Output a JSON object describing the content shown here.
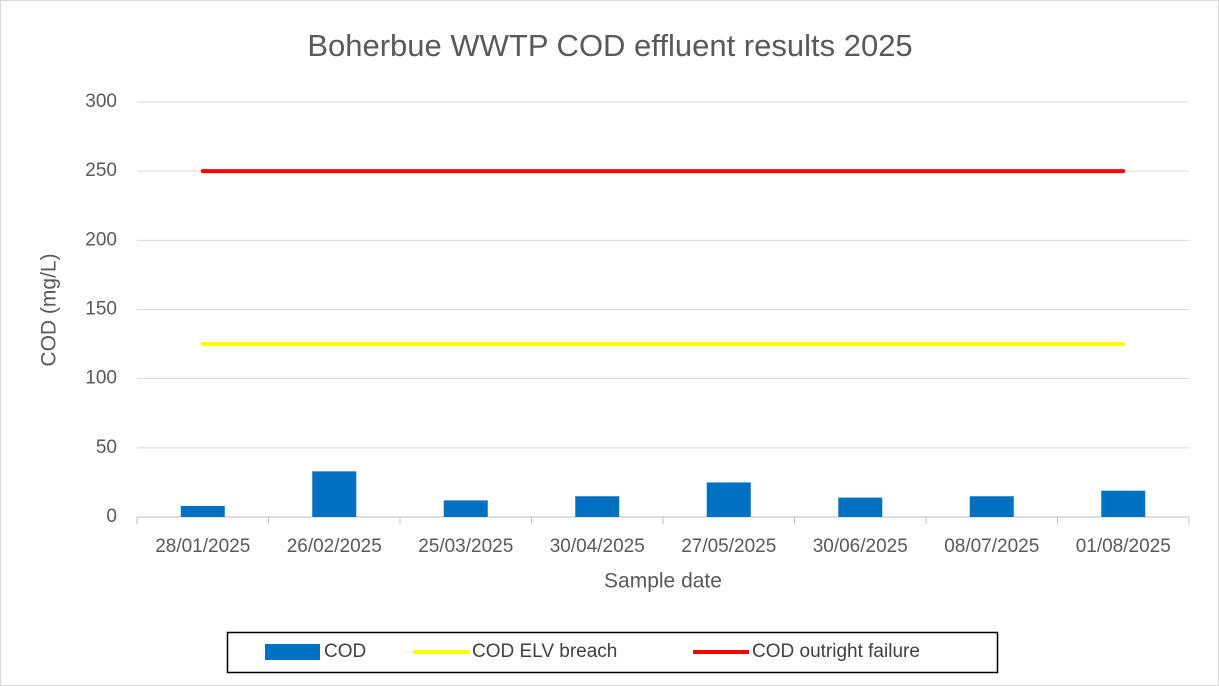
{
  "chart_data": {
    "type": "bar",
    "title": "Boherbue WWTP COD effluent results 2025",
    "xlabel": "Sample date",
    "ylabel": "COD (mg/L)",
    "categories": [
      "28/01/2025",
      "26/02/2025",
      "25/03/2025",
      "30/04/2025",
      "27/05/2025",
      "30/06/2025",
      "08/07/2025",
      "01/08/2025"
    ],
    "series": [
      {
        "name": "COD",
        "type": "bar",
        "color": "#0070c0",
        "values": [
          8,
          33,
          12,
          15,
          25,
          14,
          15,
          19
        ]
      },
      {
        "name": "COD ELV breach",
        "type": "line",
        "color": "#ffff00",
        "values": [
          125,
          125,
          125,
          125,
          125,
          125,
          125,
          125
        ]
      },
      {
        "name": "COD outright failure",
        "type": "line",
        "color": "#ff0000",
        "values": [
          250,
          250,
          250,
          250,
          250,
          250,
          250,
          250
        ]
      }
    ],
    "ylim": [
      0,
      300
    ],
    "yticks": [
      0,
      50,
      100,
      150,
      200,
      250,
      300
    ],
    "grid": true,
    "legend": "bottom"
  }
}
